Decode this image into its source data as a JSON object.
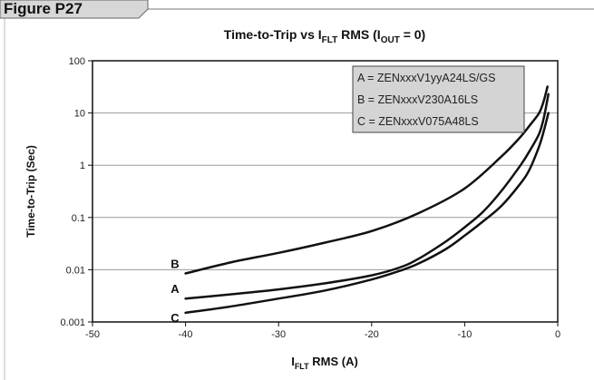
{
  "figure_label": "Figure P27",
  "chart_data": {
    "type": "line",
    "title_main": "Time-to-Trip vs I",
    "title_sub": "FLT",
    "title_rest": " RMS (I",
    "title_sub2": "OUT",
    "title_end": " = 0)",
    "xlabel_main": "I",
    "xlabel_sub": "FLT",
    "xlabel_rest": " RMS (A)",
    "ylabel": "Time-to-Trip (Sec)",
    "xlim": [
      -50,
      0
    ],
    "ylim": [
      0.001,
      100
    ],
    "y_scale": "log",
    "x_ticks": [
      "-50",
      "-40",
      "-30",
      "-20",
      "-10",
      "0"
    ],
    "y_ticks": [
      "100",
      "10",
      "1",
      "0.1",
      "0.01",
      "0.001"
    ],
    "grid": "horizontal",
    "legend_position": "top-right",
    "legend": [
      "A = ZENxxxV1yyA24LS/GS",
      "B = ZENxxxV230A16LS",
      "C = ZENxxxV075A48LS"
    ],
    "series": [
      {
        "name": "B",
        "x": [
          -40,
          -35,
          -30,
          -25,
          -20,
          -15,
          -10,
          -6,
          -4,
          -3,
          -2,
          -1.5,
          -1.1
        ],
        "y": [
          0.0085,
          0.014,
          0.021,
          0.033,
          0.055,
          0.12,
          0.36,
          1.5,
          3.5,
          5.8,
          10,
          17,
          32
        ]
      },
      {
        "name": "A",
        "x": [
          -40,
          -35,
          -30,
          -25,
          -20,
          -17,
          -15,
          -12,
          -10,
          -8,
          -6,
          -4,
          -3,
          -2,
          -1.5,
          -1
        ],
        "y": [
          0.0028,
          0.0034,
          0.0042,
          0.0055,
          0.0078,
          0.011,
          0.016,
          0.035,
          0.065,
          0.13,
          0.33,
          1.0,
          1.9,
          4.0,
          8.0,
          23
        ]
      },
      {
        "name": "C",
        "x": [
          -40,
          -35,
          -30,
          -25,
          -20,
          -17,
          -15,
          -12,
          -10,
          -8,
          -6,
          -4,
          -3,
          -2,
          -1.5,
          -1
        ],
        "y": [
          0.0015,
          0.002,
          0.0028,
          0.004,
          0.0065,
          0.0095,
          0.013,
          0.025,
          0.045,
          0.085,
          0.17,
          0.45,
          0.85,
          2.3,
          4.5,
          10
        ]
      }
    ]
  }
}
